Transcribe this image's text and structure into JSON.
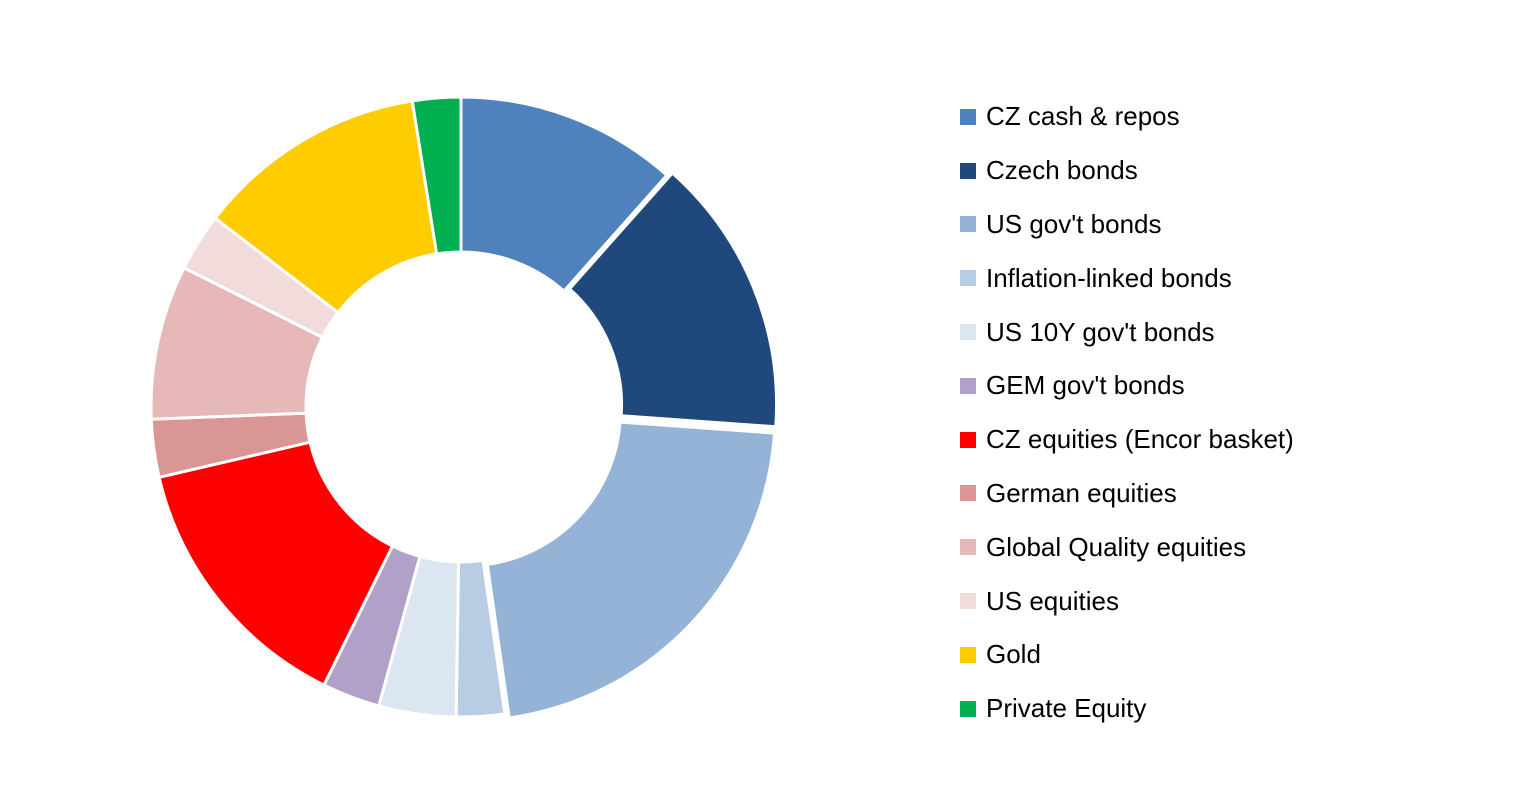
{
  "chart_data": {
    "type": "pie",
    "variant": "donut",
    "title": "",
    "legend_position": "right",
    "series": [
      {
        "labels": [
          "CZ cash & repos",
          "Czech bonds",
          "US gov't bonds",
          "Inflation-linked bonds",
          "US 10Y gov't bonds",
          "GEM gov't bonds",
          "CZ equities (Encor basket)",
          "German equities",
          "Global Quality equities",
          "US equities",
          "Gold",
          "Private Equity"
        ],
        "values": [
          11.5,
          14.5,
          21.5,
          2.5,
          4.0,
          3.0,
          14.0,
          3.0,
          8.0,
          3.0,
          12.0,
          2.5
        ],
        "colors": [
          "#4f81bd",
          "#1f497d",
          "#95b3d7",
          "#b8cce4",
          "#dce6f1",
          "#b1a0c7",
          "#ff0000",
          "#da9694",
          "#e6b8b7",
          "#f2dcdb",
          "#ffcc00",
          "#00b050"
        ]
      }
    ]
  }
}
